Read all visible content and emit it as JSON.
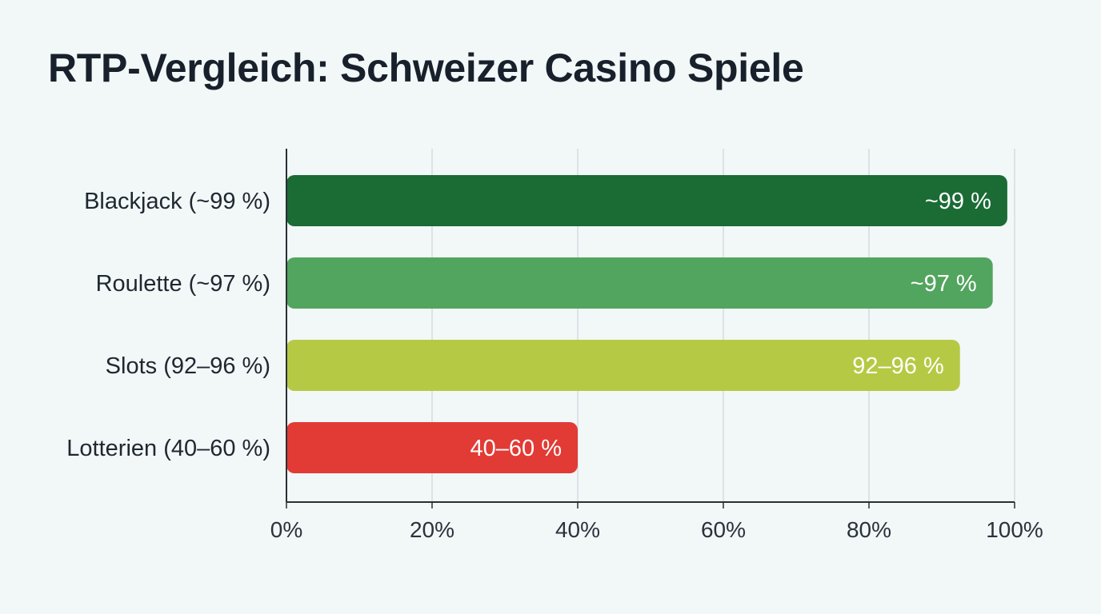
{
  "chart_data": {
    "type": "bar",
    "orientation": "horizontal",
    "title": "RTP-Vergleich: Schweizer Casino Spiele",
    "xlabel": "",
    "ylabel": "",
    "categories": [
      "Blackjack (~99 %)",
      "Roulette (~97 %)",
      "Slots (92–96 %)",
      "Lotterien (40–60 %)"
    ],
    "values": [
      99,
      97,
      92.5,
      40
    ],
    "value_labels": [
      "~99 %",
      "~97 %",
      "92–96 %",
      "40–60 %"
    ],
    "colors": [
      "#1b6b35",
      "#52a55e",
      "#b6c944",
      "#e23a35"
    ],
    "xlim": [
      0,
      100
    ],
    "x_ticks": [
      0,
      20,
      40,
      60,
      80,
      100
    ],
    "x_tick_labels": [
      "0%",
      "20%",
      "40%",
      "60%",
      "80%",
      "100%"
    ],
    "grid": true
  }
}
